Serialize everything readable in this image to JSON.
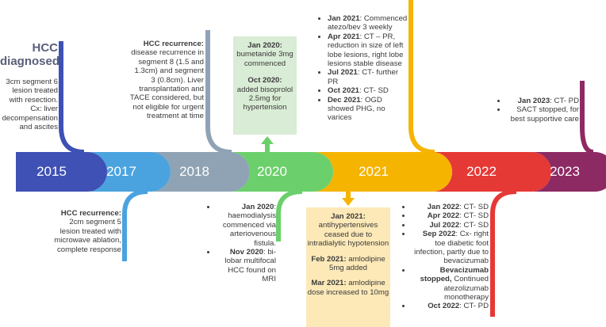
{
  "colors": {
    "y2015": "#3f51b5",
    "y2017": "#4aa3df",
    "y2018": "#8fa3b5",
    "y2020": "#6bd06b",
    "y2021": "#f5b400",
    "y2022": "#e53935",
    "y2023": "#8e2a63",
    "green_box": "#d9ecd5",
    "yellow_box": "#fde9b8"
  },
  "years": [
    "2015",
    "2017",
    "2018",
    "2020",
    "2021",
    "2022",
    "2023"
  ],
  "e2015": {
    "title_line1": "HCC",
    "title_line2": "diagnosed",
    "body": "3cm segment 6 lesion treated with resection. Cx: liver decompensation and ascites"
  },
  "e2017": {
    "title": "HCC recurrence:",
    "body": "2cm segment 5 lesion treated with microwave ablation, complete response"
  },
  "e2018": {
    "title": "HCC recurrence:",
    "body": "disease recurrence in segment 8 (1.5 and 1.3cm) and segment 3 (0.8cm). Liver transplantation and TACE considered, but not eligible for urgent treatment at time"
  },
  "e2020_top": {
    "d1": "Jan 2020:",
    "t1": "bumetanide 3mg commenced",
    "d2": "Oct 2020:",
    "t2": "added bisoprolol 2.5mg for hypertension"
  },
  "e2020_bottom": [
    {
      "date": "Jan 2020",
      "text": ": haemodialysis commenced via arteriovenous fistula."
    },
    {
      "date": "Nov 2020",
      "text": ": bi-lobar multifocal HCC found on MRI"
    }
  ],
  "e2021_top": [
    {
      "date": "Jan 2021",
      "text": ": Commenced atezo/bev 3 weekly"
    },
    {
      "date": "Apr 2021",
      "text": ": CT – PR, reduction in size of left lobe lesions, right lobe lesions stable disease"
    },
    {
      "date": "Jul 2021",
      "text": ": CT- further PR"
    },
    {
      "date": "Oct 2021",
      "text": ": CT- SD"
    },
    {
      "date": "Dec 2021",
      "text": ": OGD showed PHG, no varices"
    }
  ],
  "e2021_bottom": {
    "d1": "Jan 2021:",
    "t1": "antihypertensives ceased due to intradialytic hypotension",
    "d2": "Feb 2021:",
    "t2": " amlodipine 5mg added",
    "d3": "Mar 2021:",
    "t3": " amlodipine dose increased to 10mg"
  },
  "e2022": [
    {
      "date": "Jan 2022",
      "text": ": CT- SD"
    },
    {
      "date": "Apr 2022",
      "text": ": CT- SD"
    },
    {
      "date": "Jul 2022",
      "text": ": CT- SD"
    },
    {
      "date": "Sep 2022",
      "text": ": Cx- right toe diabetic foot infection, partly due to bevacizumab"
    },
    {
      "date": "Bevacizumab stopped,",
      "text": " Continued atezolizumab monotherapy"
    },
    {
      "date": "Oct 2022",
      "text": ": CT- PD"
    }
  ],
  "e2023": [
    {
      "date": "Jan 2023",
      "text": ": CT- PD"
    },
    {
      "date": "",
      "text": "SACT stopped, for best supportive care"
    }
  ]
}
